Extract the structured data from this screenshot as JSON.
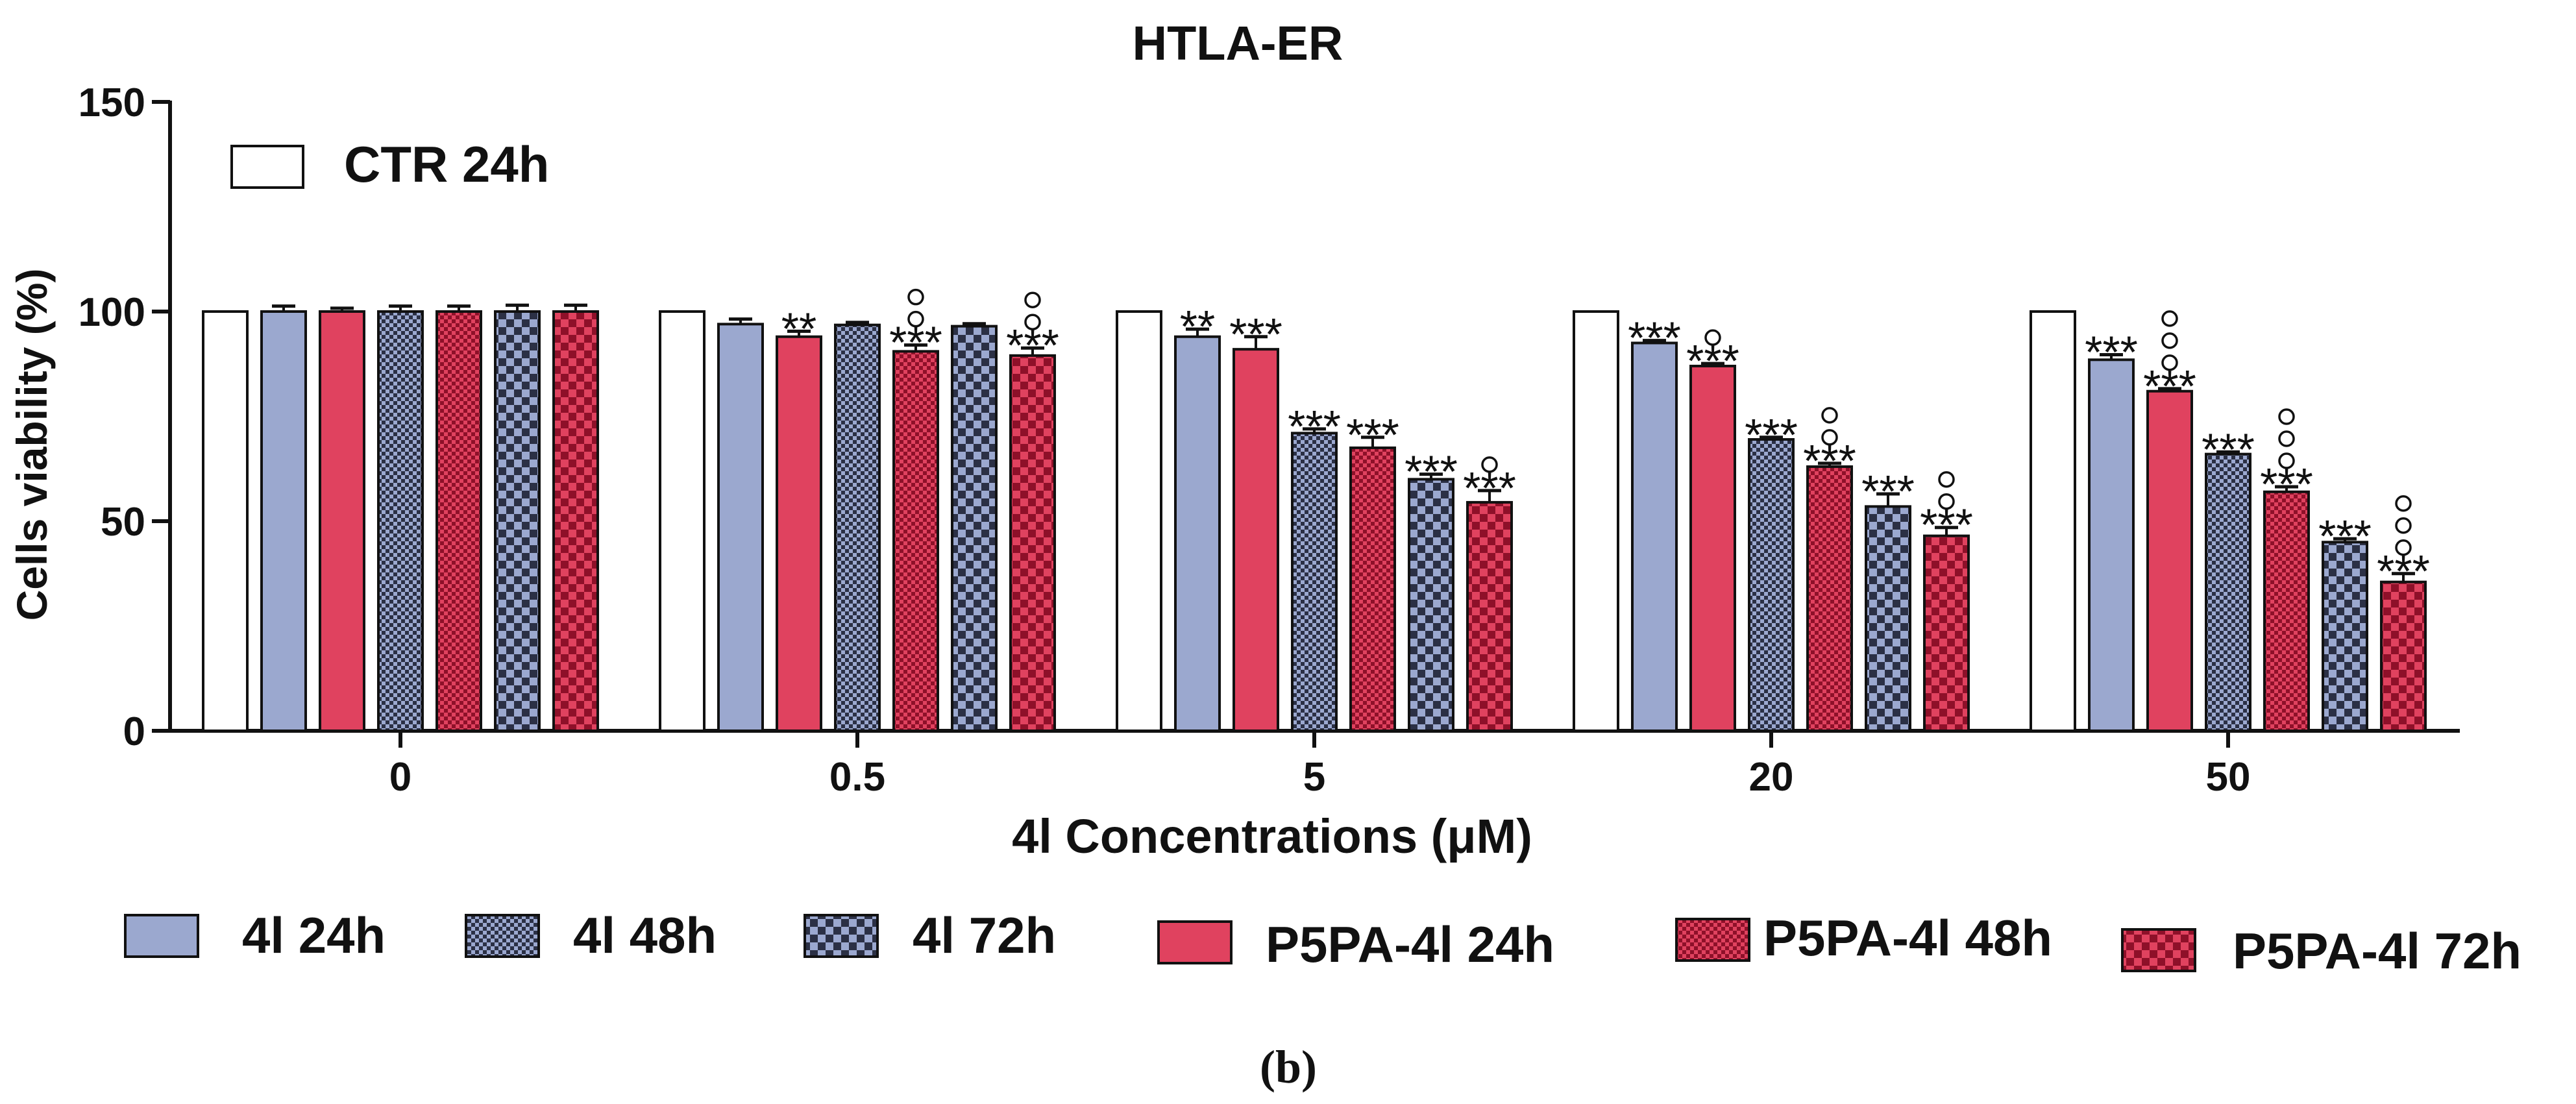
{
  "chart_data": {
    "type": "bar",
    "title": "HTLA-ER",
    "xlabel": "4l Concentrations (μM)",
    "ylabel": "Cells viability (%)",
    "ylim": [
      0,
      150
    ],
    "yticks": [
      "0",
      "50",
      "100",
      "150"
    ],
    "categories": [
      "0",
      "0.5",
      "5",
      "20",
      "50"
    ],
    "grid": false,
    "series": [
      {
        "name": "CTR 24h",
        "pattern": "solid",
        "color": "#ffffff",
        "values": [
          100,
          100,
          100,
          100,
          100
        ],
        "errors": [
          0,
          0,
          0,
          0,
          0
        ],
        "stars": [
          "",
          "",
          "",
          "",
          ""
        ],
        "circles": [
          0,
          0,
          0,
          0,
          0
        ]
      },
      {
        "name": "4l 24h",
        "pattern": "solid",
        "color": "#9ba8cf",
        "values": [
          100,
          97,
          94,
          92.5,
          88.5
        ],
        "errors": [
          1.3,
          1.2,
          1.8,
          0.6,
          1.2
        ],
        "stars": [
          "",
          "",
          "**",
          "***",
          "***"
        ],
        "circles": [
          0,
          0,
          0,
          0,
          0
        ]
      },
      {
        "name": "P5PA-4l 24h",
        "pattern": "solid",
        "color": "#e0425f",
        "values": [
          100,
          94,
          91,
          87,
          81
        ],
        "errors": [
          0.8,
          1.3,
          3,
          0.6,
          0.6
        ],
        "stars": [
          "",
          "**",
          "***",
          "***",
          "***"
        ],
        "circles": [
          0,
          0,
          0,
          1,
          3
        ]
      },
      {
        "name": "4l 48h",
        "pattern": "check-fine",
        "color": "#9ba8cf",
        "values": [
          100,
          96.8,
          71,
          69.5,
          66
        ],
        "errors": [
          1.3,
          0.6,
          1,
          0.5,
          0.5
        ],
        "stars": [
          "",
          "",
          "***",
          "***",
          "***"
        ],
        "circles": [
          0,
          0,
          0,
          0,
          0
        ]
      },
      {
        "name": "P5PA-4l 48h",
        "pattern": "check-fine",
        "color": "#e0425f",
        "values": [
          100,
          90.5,
          67.5,
          63,
          57
        ],
        "errors": [
          1.3,
          1.5,
          2.5,
          0.8,
          1.2
        ],
        "stars": [
          "",
          "***",
          "***",
          "***",
          "***"
        ],
        "circles": [
          0,
          2,
          0,
          2,
          3
        ]
      },
      {
        "name": "4l 72h",
        "pattern": "check-coarse",
        "color": "#9ba8cf",
        "values": [
          100,
          96.5,
          60,
          53.5,
          45
        ],
        "errors": [
          1.5,
          0.6,
          1.2,
          3,
          0.8
        ],
        "stars": [
          "",
          "",
          "***",
          "***",
          "***"
        ],
        "circles": [
          0,
          0,
          0,
          0,
          0
        ]
      },
      {
        "name": "P5PA-4l 72h",
        "pattern": "check-coarse",
        "color": "#e0425f",
        "values": [
          100,
          89.5,
          54.5,
          46.5,
          35.5
        ],
        "errors": [
          1.5,
          1.8,
          2.8,
          2,
          2
        ],
        "stars": [
          "",
          "***",
          "***",
          "***",
          "***"
        ],
        "circles": [
          0,
          2,
          1,
          2,
          3
        ]
      }
    ],
    "legend_top": [
      "CTR 24h"
    ],
    "legend_bottom": [
      "4l 24h",
      "4l 48h",
      "4l 72h",
      "P5PA-4l 24h",
      "P5PA-4l 48h",
      "P5PA-4l 72h"
    ]
  },
  "caption": "(b)"
}
